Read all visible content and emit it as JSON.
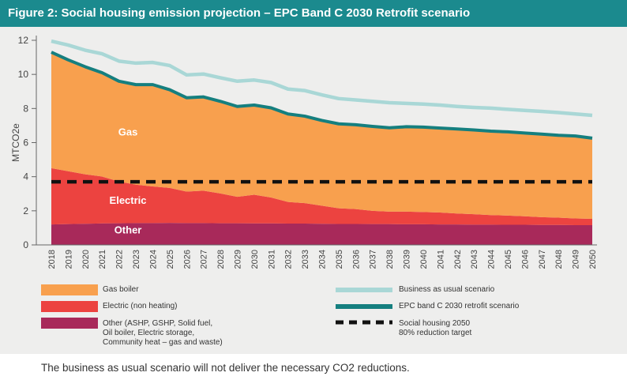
{
  "title": "Figure 2: Social housing emission  projection – EPC Band C 2030 Retrofit scenario",
  "footer_note": "The business as usual scenario will not deliver the necessary CO2 reductions.",
  "colors": {
    "header_bg": "#1b8a8e",
    "gas": "#f8a04e",
    "electric": "#ec4340",
    "other": "#a8295a",
    "bau_line": "#a9d7d6",
    "retrofit_line": "#157f7f",
    "target_line": "#111111"
  },
  "legend": {
    "gas": "Gas boiler",
    "electric": "Electric (non heating)",
    "other_line1": "Other (ASHP, GSHP, Solid fuel,",
    "other_line2": "Oil boiler, Electric storage,",
    "other_line3": "Community heat – gas and waste)",
    "bau": "Business as usual scenario",
    "retrofit": "EPC band C 2030 retrofit scenario",
    "target_line1": "Social housing 2050",
    "target_line2": "80% reduction target"
  },
  "chart_data": {
    "type": "area",
    "ylabel": "MTCO2e",
    "xlabel": "",
    "ylim": [
      0,
      12
    ],
    "yticks": [
      "0",
      "2",
      "4",
      "6",
      "8",
      "10",
      "12"
    ],
    "categories": [
      "2018",
      "2019",
      "2020",
      "2021",
      "2022",
      "2023",
      "2024",
      "2025",
      "2026",
      "2027",
      "2028",
      "2029",
      "2030",
      "2031",
      "2032",
      "2033",
      "2034",
      "2035",
      "2036",
      "2037",
      "2038",
      "2039",
      "2040",
      "2041",
      "2042",
      "2043",
      "2044",
      "2045",
      "2046",
      "2047",
      "2048",
      "2049",
      "2050"
    ],
    "area_labels": {
      "gas": "Gas",
      "electric": "Electric",
      "other": "Other"
    },
    "series": [
      {
        "name": "Other",
        "key": "other",
        "kind": "stacked-area",
        "values": [
          1.2,
          1.22,
          1.24,
          1.26,
          1.27,
          1.28,
          1.28,
          1.29,
          1.28,
          1.28,
          1.27,
          1.27,
          1.26,
          1.26,
          1.25,
          1.25,
          1.24,
          1.23,
          1.23,
          1.22,
          1.22,
          1.21,
          1.21,
          1.2,
          1.2,
          1.19,
          1.19,
          1.18,
          1.18,
          1.17,
          1.17,
          1.16,
          1.16
        ]
      },
      {
        "name": "Electric",
        "key": "electric",
        "kind": "stacked-area",
        "values": [
          3.3,
          3.1,
          2.9,
          2.75,
          2.45,
          2.25,
          2.15,
          2.05,
          1.85,
          1.9,
          1.75,
          1.55,
          1.68,
          1.52,
          1.27,
          1.2,
          1.06,
          0.92,
          0.87,
          0.78,
          0.73,
          0.74,
          0.72,
          0.7,
          0.64,
          0.61,
          0.56,
          0.54,
          0.5,
          0.46,
          0.43,
          0.39,
          0.37
        ]
      },
      {
        "name": "Gas",
        "key": "gas",
        "kind": "stacked-area",
        "values": [
          6.8,
          6.53,
          6.31,
          6.09,
          5.88,
          5.87,
          5.97,
          5.76,
          5.5,
          5.5,
          5.4,
          5.3,
          5.26,
          5.26,
          5.16,
          5.1,
          5.0,
          4.95,
          4.95,
          4.95,
          4.92,
          4.98,
          4.98,
          4.95,
          4.96,
          4.94,
          4.92,
          4.91,
          4.88,
          4.87,
          4.83,
          4.84,
          4.73
        ]
      },
      {
        "name": "Business as usual scenario",
        "key": "bau",
        "kind": "line",
        "values": [
          11.95,
          11.72,
          11.42,
          11.21,
          10.78,
          10.66,
          10.7,
          10.52,
          9.97,
          10.02,
          9.8,
          9.6,
          9.67,
          9.52,
          9.14,
          9.05,
          8.8,
          8.58,
          8.5,
          8.42,
          8.34,
          8.3,
          8.26,
          8.2,
          8.12,
          8.06,
          8.02,
          7.95,
          7.89,
          7.83,
          7.76,
          7.68,
          7.6
        ]
      },
      {
        "name": "EPC band C 2030 retrofit scenario",
        "key": "retrofit",
        "kind": "line",
        "values": [
          11.3,
          10.85,
          10.45,
          10.1,
          9.6,
          9.4,
          9.4,
          9.1,
          8.63,
          8.68,
          8.42,
          8.12,
          8.2,
          8.04,
          7.68,
          7.55,
          7.3,
          7.1,
          7.05,
          6.95,
          6.87,
          6.93,
          6.91,
          6.85,
          6.8,
          6.74,
          6.67,
          6.63,
          6.56,
          6.5,
          6.43,
          6.39,
          6.26
        ]
      },
      {
        "name": "Social housing 2050 80% reduction target",
        "key": "target",
        "kind": "dashed-line",
        "values": [
          3.7,
          3.7,
          3.7,
          3.7,
          3.7,
          3.7,
          3.7,
          3.7,
          3.7,
          3.7,
          3.7,
          3.7,
          3.7,
          3.7,
          3.7,
          3.7,
          3.7,
          3.7,
          3.7,
          3.7,
          3.7,
          3.7,
          3.7,
          3.7,
          3.7,
          3.7,
          3.7,
          3.7,
          3.7,
          3.7,
          3.7,
          3.7,
          3.7
        ]
      }
    ]
  }
}
